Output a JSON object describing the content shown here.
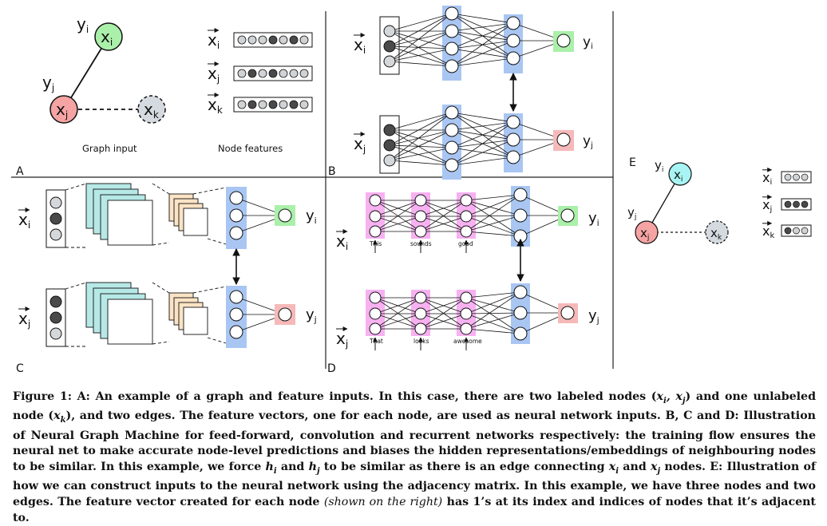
{
  "panels": {
    "a": {
      "letter": "A",
      "graph_input_label": "Graph input",
      "node_features_label": "Node features",
      "nodes": [
        {
          "label": "x",
          "sub": "i",
          "color": "#aaf0aa"
        },
        {
          "label": "x",
          "sub": "j",
          "color": "#f5a3a3"
        },
        {
          "label": "x",
          "sub": "k",
          "color": "#d4dadf"
        }
      ],
      "node_labels": [
        {
          "label": "y",
          "sub": "i"
        },
        {
          "label": "y",
          "sub": "j"
        }
      ],
      "feature_rows": [
        {
          "sub": "i",
          "pattern": [
            0,
            0,
            0,
            1,
            0,
            1,
            0
          ]
        },
        {
          "sub": "j",
          "pattern": [
            0,
            1,
            0,
            1,
            0,
            0,
            0
          ]
        },
        {
          "sub": "k",
          "pattern": [
            0,
            1,
            0,
            1,
            0,
            1,
            0
          ]
        }
      ]
    },
    "b": {
      "letter": "B"
    },
    "c": {
      "letter": "C"
    },
    "d": {
      "letter": "D",
      "words_i": [
        "This",
        "sounds",
        "good"
      ],
      "words_j": [
        "That",
        "looks",
        "awesome"
      ]
    },
    "e": {
      "letter": "E",
      "node_colors": {
        "i": "#a8f4f4",
        "j": "#f5a3a3",
        "k": "#d4dadf"
      }
    }
  },
  "colors": {
    "hidden_layer": "#a9c6f3",
    "output_green": "#aaf0aa",
    "output_red": "#f6b9b9",
    "word_box": "#f7b1f1",
    "conv_cyan": "#b6e8e6",
    "conv_peach": "#fbe3c5"
  },
  "caption": {
    "p1": "Figure 1: A: An example of a graph and feature inputs. In this case, there are two labeled nodes (",
    "p2": ") and one unlabeled node (",
    "p3": "), and two edges. The feature vectors, one for each node, are used as neural network inputs. B, C and D: Illustration of Neural Graph Machine for feed-forward, convolution and recurrent networks respectively: the training flow ensures the neural net to make accurate node-level predictions and biases the hidden representations/embeddings of neighbouring nodes to be similar. In this example, we force ",
    "p4": " and ",
    "p5": " to be similar as there is an edge connecting ",
    "p6": " and ",
    "p7": " nodes. E: Illustration of how we can construct inputs to the neural network using the adjacency matrix. In this example, we have three nodes and two edges. The feature vector created for each node ",
    "p8": "(shown on the right)",
    "p9": " has 1’s at its index and indices of nodes that it’s adjacent to.",
    "m_xi_xj": "xi, xj",
    "m_xk": "xk",
    "m_hi": "hi",
    "m_hj": "hj",
    "m_xi": "xi",
    "m_xj": "xj"
  }
}
